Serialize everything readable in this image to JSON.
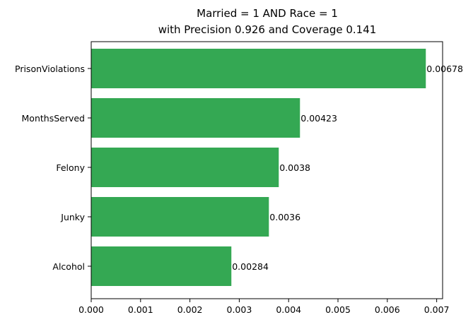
{
  "chart_data": {
    "type": "bar",
    "orientation": "horizontal",
    "title_line1": "Married = 1 AND Race = 1",
    "title_line2": "with Precision 0.926 and Coverage 0.141",
    "categories": [
      "PrisonViolations",
      "MonthsServed",
      "Felony",
      "Junky",
      "Alcohol"
    ],
    "values": [
      0.00678,
      0.00423,
      0.0038,
      0.0036,
      0.00284
    ],
    "value_labels": [
      "0.00678",
      "0.00423",
      "0.0038",
      "0.0036",
      "0.00284"
    ],
    "xlim": [
      0,
      0.00712
    ],
    "xticks": [
      0,
      0.001,
      0.002,
      0.003,
      0.004,
      0.005,
      0.006,
      0.007
    ],
    "xtick_labels": [
      "0.000",
      "0.001",
      "0.002",
      "0.003",
      "0.004",
      "0.005",
      "0.006",
      "0.007"
    ],
    "xlabel": "",
    "ylabel": "",
    "grid": false,
    "bar_color": "#34a853"
  }
}
